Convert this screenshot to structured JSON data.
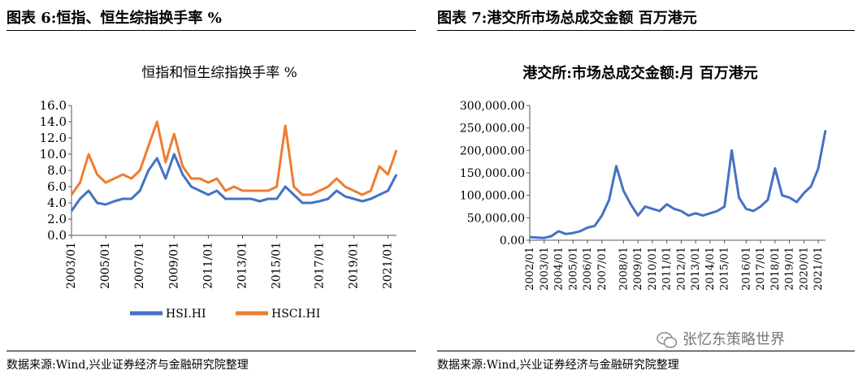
{
  "left_panel": {
    "figure_title": "图表 6:恒指、恒生综指换手率 %",
    "source": "数据来源:Wind,兴业证券经济与金融研究院整理"
  },
  "right_panel": {
    "figure_title": "图表 7:港交所市场总成交金额 百万港元",
    "source": "数据来源:Wind,兴业证券经济与金融研究院整理"
  },
  "watermark": "张忆东策略世界",
  "chart_data": [
    {
      "type": "line",
      "title": "恒指和恒生综指换手率 %",
      "x": [
        "2003/01",
        "2003/07",
        "2004/01",
        "2004/07",
        "2005/01",
        "2005/07",
        "2006/01",
        "2006/07",
        "2007/01",
        "2007/07",
        "2008/01",
        "2008/07",
        "2009/01",
        "2009/07",
        "2010/01",
        "2010/07",
        "2011/01",
        "2011/07",
        "2012/01",
        "2012/07",
        "2013/01",
        "2013/07",
        "2014/01",
        "2014/07",
        "2015/01",
        "2015/04",
        "2015/07",
        "2016/01",
        "2016/07",
        "2017/01",
        "2017/07",
        "2018/01",
        "2018/07",
        "2019/01",
        "2019/07",
        "2020/01",
        "2020/07",
        "2021/01",
        "2021/03"
      ],
      "x_tick_labels": [
        "2003/01",
        "2005/01",
        "2007/01",
        "2009/01",
        "2011/01",
        "2013/01",
        "2015/01",
        "2017/01",
        "2019/01",
        "2021/01"
      ],
      "series": [
        {
          "name": "HSI.HI",
          "color": "#4472C4",
          "values": [
            3.0,
            4.5,
            5.5,
            4.0,
            3.8,
            4.2,
            4.5,
            4.5,
            5.5,
            8.0,
            9.5,
            7.0,
            10.0,
            7.5,
            6.0,
            5.5,
            5.0,
            5.5,
            4.5,
            4.5,
            4.5,
            4.5,
            4.2,
            4.5,
            4.5,
            6.0,
            5.0,
            4.0,
            4.0,
            4.2,
            4.5,
            5.5,
            4.8,
            4.5,
            4.2,
            4.5,
            5.0,
            5.5,
            7.5
          ]
        },
        {
          "name": "HSCI.HI",
          "color": "#ED7D31",
          "values": [
            5.0,
            6.5,
            10.0,
            7.5,
            6.5,
            7.0,
            7.5,
            7.0,
            8.0,
            11.0,
            14.0,
            9.0,
            12.5,
            8.5,
            7.0,
            7.0,
            6.5,
            7.0,
            5.5,
            6.0,
            5.5,
            5.5,
            5.5,
            5.5,
            6.0,
            13.5,
            6.0,
            5.0,
            5.0,
            5.5,
            6.0,
            7.0,
            6.0,
            5.5,
            5.0,
            5.5,
            8.5,
            7.5,
            10.5
          ]
        }
      ],
      "ylim": [
        0,
        16
      ],
      "y_tick_labels": [
        "0.0",
        "2.0",
        "4.0",
        "6.0",
        "8.0",
        "10.0",
        "12.0",
        "14.0",
        "16.0"
      ],
      "legend": "bottom"
    },
    {
      "type": "line",
      "title": "港交所:市场总成交金额:月 百万港元",
      "x": [
        "2002/01",
        "2002/07",
        "2003/01",
        "2003/07",
        "2004/01",
        "2004/07",
        "2005/01",
        "2005/07",
        "2006/01",
        "2006/07",
        "2007/01",
        "2007/07",
        "2007/10",
        "2008/01",
        "2008/07",
        "2009/01",
        "2009/07",
        "2010/01",
        "2010/07",
        "2011/01",
        "2011/07",
        "2012/01",
        "2012/07",
        "2013/01",
        "2013/07",
        "2014/01",
        "2014/07",
        "2015/01",
        "2015/04",
        "2015/07",
        "2016/01",
        "2016/07",
        "2017/01",
        "2017/07",
        "2018/01",
        "2018/07",
        "2019/01",
        "2019/07",
        "2020/01",
        "2020/07",
        "2021/01",
        "2021/02"
      ],
      "x_tick_labels": [
        "2002/01",
        "2003/01",
        "2004/01",
        "2005/01",
        "2006/01",
        "2007/01",
        "2008/01",
        "2009/01",
        "2010/01",
        "2011/01",
        "2012/01",
        "2013/01",
        "2014/01",
        "2015/01",
        "2016/01",
        "2017/01",
        "2018/01",
        "2019/01",
        "2020/01",
        "2021/01"
      ],
      "series": [
        {
          "name": "",
          "color": "#4472C4",
          "values": [
            7000,
            6000,
            5000,
            9000,
            20000,
            14000,
            16000,
            20000,
            28000,
            32000,
            55000,
            90000,
            165000,
            110000,
            80000,
            55000,
            75000,
            70000,
            65000,
            80000,
            70000,
            65000,
            55000,
            60000,
            55000,
            60000,
            65000,
            75000,
            200000,
            95000,
            70000,
            65000,
            75000,
            90000,
            160000,
            100000,
            95000,
            85000,
            105000,
            120000,
            160000,
            245000
          ]
        }
      ],
      "ylim": [
        0,
        300000
      ],
      "y_tick_labels": [
        "0.00",
        "50,000.00",
        "100,000.00",
        "150,000.00",
        "200,000.00",
        "250,000.00",
        "300,000.00"
      ],
      "legend": "none"
    }
  ]
}
